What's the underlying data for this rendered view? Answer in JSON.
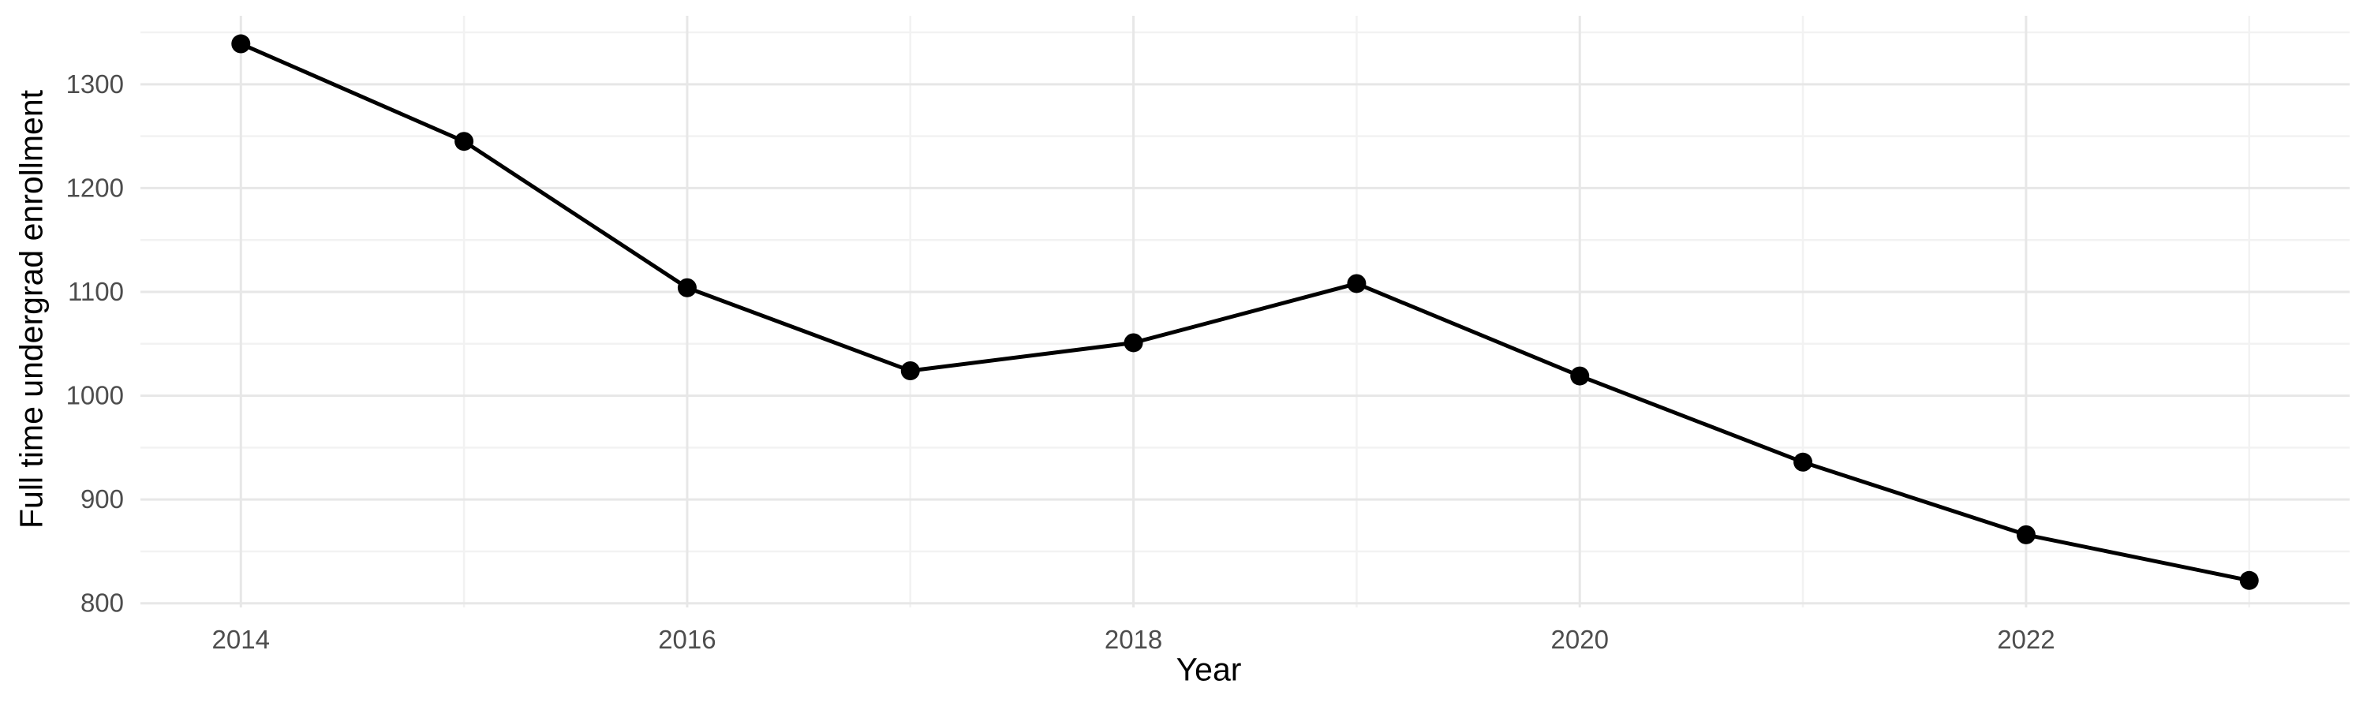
{
  "chart_data": {
    "type": "line",
    "title": "",
    "xlabel": "Year",
    "ylabel": "Full time undergrad enrollment",
    "x": [
      2014,
      2015,
      2016,
      2017,
      2018,
      2019,
      2020,
      2021,
      2022,
      2023
    ],
    "series": [
      {
        "name": "Full time undergrad enrollment",
        "values": [
          1339,
          1245,
          1104,
          1024,
          1051,
          1108,
          1019,
          936,
          866,
          822
        ]
      }
    ],
    "x_major_ticks": [
      2014,
      2016,
      2018,
      2020,
      2022
    ],
    "x_minor_ticks": [
      2015,
      2017,
      2019,
      2021,
      2023
    ],
    "y_major_ticks": [
      800,
      900,
      1000,
      1100,
      1200,
      1300
    ],
    "y_minor_ticks": [
      850,
      950,
      1050,
      1150,
      1250,
      1350
    ],
    "xlim": [
      2013.55,
      2023.45
    ],
    "ylim": [
      796,
      1366
    ],
    "grid": "on",
    "legend": "none",
    "colors": {
      "line": "#000000",
      "point": "#000000",
      "tick_label": "#4d4d4d",
      "axis_title": "#000000",
      "major_grid": "#e7e7e7",
      "minor_grid": "#f2f2f2",
      "background": "#ffffff"
    }
  }
}
